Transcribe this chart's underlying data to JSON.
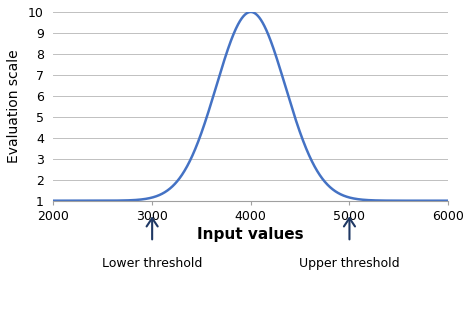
{
  "title": "",
  "xlabel": "Input values",
  "ylabel": "Evaluation scale",
  "xlim": [
    2000,
    6000
  ],
  "ylim": [
    1,
    10
  ],
  "xticks": [
    2000,
    3000,
    4000,
    5000,
    6000
  ],
  "yticks": [
    1,
    2,
    3,
    4,
    5,
    6,
    7,
    8,
    9,
    10
  ],
  "gauss_mean": 4000,
  "gauss_sigma": 350,
  "gauss_amplitude": 9,
  "gauss_baseline": 1,
  "curve_color": "#4472C4",
  "curve_linewidth": 1.8,
  "lower_threshold": 3000,
  "upper_threshold": 5000,
  "arrow_color": "#1F3864",
  "lower_label": "Lower threshold",
  "upper_label": "Upper threshold",
  "xlabel_fontsize": 11,
  "ylabel_fontsize": 10,
  "tick_fontsize": 9,
  "annotation_fontsize": 9,
  "grid_color": "#C0C0C0",
  "grid_linewidth": 0.7,
  "background_color": "#FFFFFF"
}
